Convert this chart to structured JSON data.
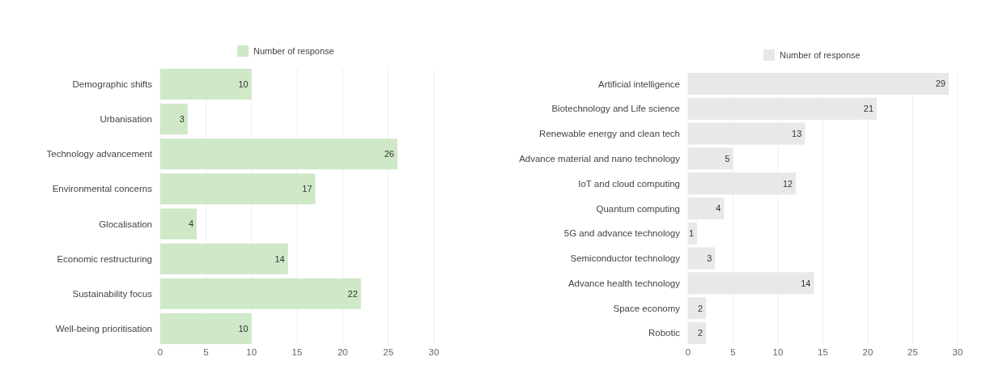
{
  "chart_data": [
    {
      "type": "bar",
      "orientation": "horizontal",
      "categories": [
        "Demographic shifts",
        "Urbanisation",
        "Technology advancement",
        "Environmental concerns",
        "Glocalisation",
        "Economic restructuring",
        "Sustainability focus",
        "Well-being prioritisation"
      ],
      "series": [
        {
          "name": "Number of response",
          "color": "#cfe8c8",
          "values": [
            10,
            3,
            26,
            17,
            4,
            14,
            22,
            10
          ]
        }
      ],
      "xlim": [
        0,
        30
      ],
      "xticks": [
        0,
        5,
        10,
        15,
        20,
        25,
        30
      ],
      "grid": "x",
      "legend": "top",
      "data_labels": true
    },
    {
      "type": "bar",
      "orientation": "horizontal",
      "categories": [
        "Artificial intelligence",
        "Biotechnology and Life science",
        "Renewable energy and clean tech",
        "Advance material and nano technology",
        "IoT and cloud computing",
        "Quantum computing",
        "5G and advance technology",
        "Semiconductor technology",
        "Advance health technology",
        "Space economy",
        "Robotic"
      ],
      "series": [
        {
          "name": "Number of response",
          "color": "#e8e8e8",
          "values": [
            29,
            21,
            13,
            5,
            12,
            4,
            1,
            3,
            14,
            2,
            2
          ]
        }
      ],
      "xlim": [
        0,
        30
      ],
      "xticks": [
        0,
        5,
        10,
        15,
        20,
        25,
        30
      ],
      "grid": "x",
      "legend": "top",
      "data_labels": true
    }
  ]
}
